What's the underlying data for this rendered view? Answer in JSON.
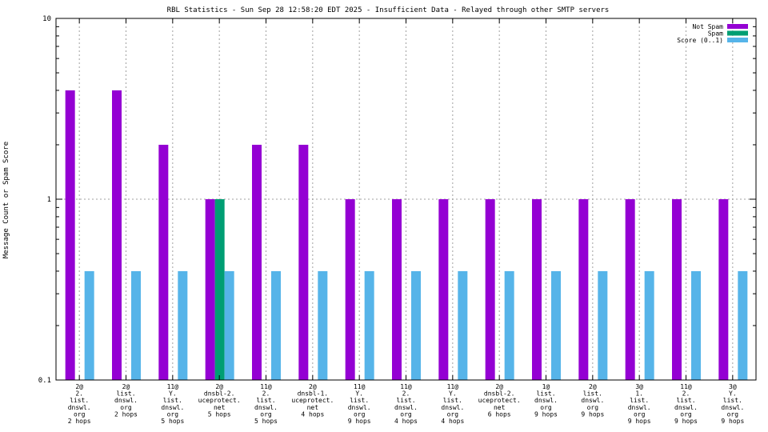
{
  "chart_data": {
    "type": "bar",
    "title": "RBL Statistics - Sun Sep 28 12:58:20 EDT 2025 - Insufficient Data - Relayed through other SMTP servers",
    "ylabel": "Message Count or Spam Score",
    "xlabel": "",
    "yscale": "log",
    "ylim": [
      0.1,
      10
    ],
    "y_ticks": [
      "0.1",
      "1",
      "10"
    ],
    "grid": true,
    "legend_position": "top-right",
    "categories": [
      [
        "2@",
        "2.",
        "list.",
        "dnswl.",
        "org",
        "2 hops"
      ],
      [
        "2@",
        "list.",
        "dnswl.",
        "org",
        "2 hops"
      ],
      [
        "11@",
        "Y.",
        "list.",
        "dnswl.",
        "org",
        "5 hops"
      ],
      [
        "2@",
        "dnsbl-2.",
        "uceprotect.",
        "net",
        "5 hops"
      ],
      [
        "11@",
        "2.",
        "list.",
        "dnswl.",
        "org",
        "5 hops"
      ],
      [
        "2@",
        "dnsbl-1.",
        "uceprotect.",
        "net",
        "4 hops"
      ],
      [
        "11@",
        "Y.",
        "list.",
        "dnswl.",
        "org",
        "9 hops"
      ],
      [
        "11@",
        "2.",
        "list.",
        "dnswl.",
        "org",
        "4 hops"
      ],
      [
        "11@",
        "Y.",
        "list.",
        "dnswl.",
        "org",
        "4 hops"
      ],
      [
        "2@",
        "dnsbl-2.",
        "uceprotect.",
        "net",
        "6 hops"
      ],
      [
        "1@",
        "list.",
        "dnswl.",
        "org",
        "9 hops"
      ],
      [
        "2@",
        "list.",
        "dnswl.",
        "org",
        "9 hops"
      ],
      [
        "3@",
        "1.",
        "list.",
        "dnswl.",
        "org",
        "9 hops"
      ],
      [
        "11@",
        "2.",
        "list.",
        "dnswl.",
        "org",
        "9 hops"
      ],
      [
        "3@",
        "Y.",
        "list.",
        "dnswl.",
        "org",
        "9 hops"
      ]
    ],
    "series": [
      {
        "name": "Not Spam",
        "color": "#9400d3",
        "values": [
          4,
          4,
          2,
          1,
          2,
          2,
          1,
          1,
          1,
          1,
          1,
          1,
          1,
          1,
          1
        ]
      },
      {
        "name": "Spam",
        "color": "#009e73",
        "values": [
          0,
          0,
          0,
          1,
          0,
          0,
          0,
          0,
          0,
          0,
          0,
          0,
          0,
          0,
          0
        ]
      },
      {
        "name": "Score (0..1)",
        "color": "#56b4e9",
        "values": [
          0.4,
          0.4,
          0.4,
          0.4,
          0.4,
          0.4,
          0.4,
          0.4,
          0.4,
          0.4,
          0.4,
          0.4,
          0.4,
          0.4,
          0.4
        ]
      }
    ]
  }
}
